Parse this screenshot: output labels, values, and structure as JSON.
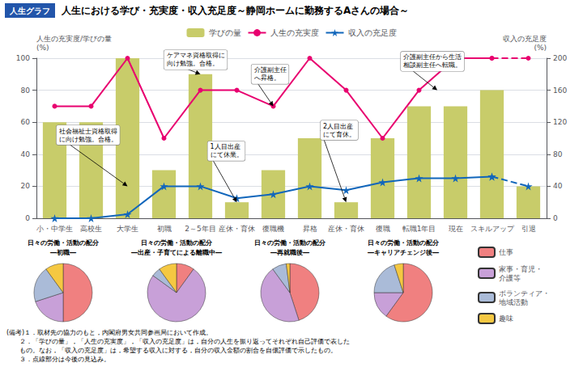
{
  "chart_data": [
    {
      "type": "bar",
      "subtitle": "人生グラフ",
      "title": "人生における学び・充実度・収入充足度～静岡ホームに勤務するAさんの場合～",
      "categories": [
        "小・中学生",
        "高校生",
        "大学生",
        "初職",
        "2～5年目",
        "産休・育休",
        "復職機",
        "昇格",
        "産休・育休",
        "復職",
        "転職1年目",
        "現在",
        "スキルアップ",
        "引退"
      ],
      "series": [
        {
          "name": "学びの量",
          "type": "bar",
          "color": "#c8cc6a",
          "values": [
            60,
            60,
            100,
            30,
            90,
            10,
            30,
            50,
            10,
            50,
            70,
            70,
            80,
            20
          ]
        },
        {
          "name": "人生の充実度",
          "type": "line",
          "color": "#e8006f",
          "marker": "circle",
          "line_style": "solid",
          "values": [
            70,
            70,
            100,
            50,
            80,
            80,
            70,
            100,
            80,
            50,
            80,
            100,
            100,
            null
          ]
        },
        {
          "name": "人生の充実度",
          "type": "line",
          "color": "#e8006f",
          "marker": "circle",
          "line_style": "dashed",
          "values": [
            null,
            null,
            null,
            null,
            null,
            null,
            null,
            null,
            null,
            null,
            null,
            null,
            100,
            100
          ]
        },
        {
          "name": "収入の充足度",
          "type": "line",
          "axis": "y2",
          "color": "#1166bb",
          "marker": "star",
          "line_style": "solid",
          "values": [
            0,
            0,
            5,
            40,
            40,
            25,
            30,
            40,
            35,
            45,
            50,
            50,
            52,
            null
          ]
        },
        {
          "name": "収入の充足度",
          "type": "line",
          "axis": "y2",
          "color": "#1166bb",
          "marker": "star",
          "line_style": "dashed",
          "values": [
            null,
            null,
            null,
            null,
            null,
            null,
            null,
            null,
            null,
            null,
            null,
            null,
            52,
            40
          ]
        }
      ],
      "ylabel": "人生の充実度/学びの量\n(%)",
      "y2label": "収入の充足度\n(%)",
      "ylim": [
        0,
        100
      ],
      "yticks": [
        0,
        20,
        40,
        60,
        80,
        100
      ],
      "y2lim": [
        0,
        200
      ],
      "y2ticks": [
        0,
        40,
        80,
        120,
        160,
        200
      ],
      "grid": true,
      "legend": "top",
      "annotations": [
        "社会福祉士資格取得\nに向け勉強。合格。",
        "ケアマネ資格取得に\n向け勉強。合格。",
        "介護副主任\nへ昇格。",
        "1人目出産\nにて休業。",
        "2人目出産\nにて育休。",
        "介護副主任から生活\n相談副主任へ転職。"
      ],
      "footnotes": [
        "(備考)１．取材先の協力のもと，内閣府男女共同参画局において作成。",
        "　　２．「学びの量」，「人生の充実度」，「収入の充足度」は，自分の人生を振り返ってそれぞれ自己評価で表した",
        "　　もの。なお，「収入の充足度」は，希望する収入に対する，自分の収入金額の割合を自儇評価で示したもの。",
        "　　３．点線部分は今後の見込み。"
      ]
    },
    {
      "type": "pie",
      "title": "日々の労働・活動の配分",
      "subtitle": "―初職―",
      "categories": [
        "仕事",
        "家事・育児・\n介護等",
        "ボランティア・\n地域活動",
        "趣味"
      ],
      "values": [
        50,
        20,
        20,
        10
      ],
      "colors": [
        "#f08080",
        "#c8a0d8",
        "#aabbd8",
        "#f5c842"
      ],
      "legend": "right"
    },
    {
      "type": "pie",
      "title": "日々の労働・活動の配分",
      "subtitle": "―出産・子育てによる離職中―",
      "categories": [
        "仕事",
        "家事・育児・\n介護等",
        "ボランティア・\n地域活動",
        "趣味"
      ],
      "values": [
        10,
        75,
        5,
        10
      ],
      "colors": [
        "#f08080",
        "#c8a0d8",
        "#aabbd8",
        "#f5c842"
      ],
      "legend": "right"
    },
    {
      "type": "pie",
      "title": "日々の労働・活動の配分",
      "subtitle": "―再就職後―",
      "categories": [
        "仕事",
        "家事・育児・\n介護等",
        "ボランティア・\n地域活動",
        "趣味"
      ],
      "values": [
        45,
        45,
        8,
        2
      ],
      "colors": [
        "#f08080",
        "#c8a0d8",
        "#aabbd8",
        "#f5c842"
      ],
      "legend": "right"
    },
    {
      "type": "pie",
      "title": "日々の労働・活動の配分",
      "subtitle": "―キャリアチェンジ後―",
      "categories": [
        "仕事",
        "家事・育児・\n介護等",
        "ボランティア・\n地域活動",
        "趣味"
      ],
      "values": [
        60,
        15,
        20,
        5
      ],
      "colors": [
        "#f08080",
        "#c8a0d8",
        "#aabbd8",
        "#f5c842"
      ],
      "legend": "right"
    }
  ]
}
